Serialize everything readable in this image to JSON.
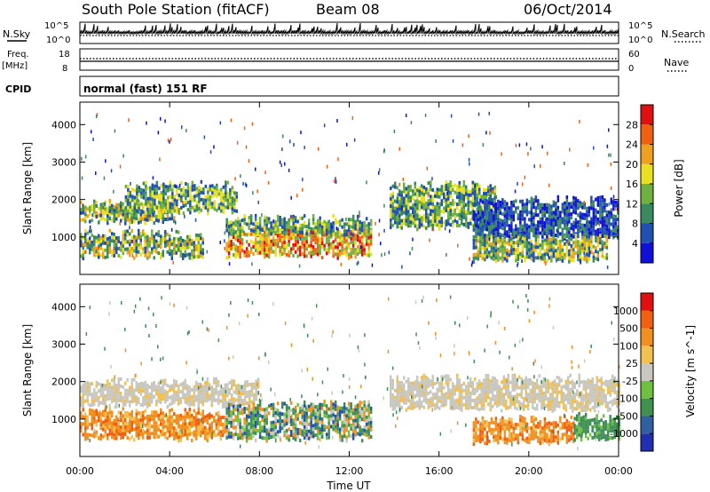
{
  "header": {
    "station": "South Pole Station (fitACF)",
    "beam": "Beam 08",
    "date": "06/Oct/2014"
  },
  "panels": {
    "nsky_label": "N.Sky",
    "nsearch_label": "N.Search",
    "freq_label_1": "Freq.",
    "freq_label_2": "[MHz]",
    "nave_label": "Nave",
    "cpid_label": "CPID",
    "cpid_value": "normal (fast) 151 RF",
    "noise_ticks_left": [
      "10^5",
      "10^0"
    ],
    "noise_ticks_right": [
      "10^5",
      "10^0"
    ],
    "freq_ticks": [
      "18",
      "8"
    ],
    "nave_ticks": [
      "60",
      "0"
    ]
  },
  "colorbars": {
    "power": {
      "label": "Power [dB]",
      "ticks": [
        "28",
        "24",
        "20",
        "16",
        "12",
        "8",
        "4"
      ],
      "colors": [
        "#1010d8",
        "#2050b0",
        "#3a8a60",
        "#70b040",
        "#e8e020",
        "#f0a020",
        "#f06010",
        "#e01010"
      ]
    },
    "velocity": {
      "label": "Velocity [m s^-1]",
      "ticks": [
        "1000",
        "500",
        "100",
        "25",
        "-25",
        "-100",
        "-500",
        "-1000"
      ],
      "colors": [
        "#2030b0",
        "#3060a0",
        "#409050",
        "#70c040",
        "#c8c8c0",
        "#f0c050",
        "#f09020",
        "#f06010",
        "#e01010"
      ]
    }
  },
  "chart_data": [
    {
      "type": "heatmap",
      "name": "power",
      "ylabel": "Slant Range [km]",
      "yticks": [
        "1000",
        "2000",
        "3000",
        "4000"
      ],
      "ylim": [
        0,
        4600
      ],
      "xlim_hours": [
        0,
        24
      ],
      "bands": [
        {
          "t0": 0.0,
          "t1": 4.2,
          "r0": 1450,
          "r1": 1900,
          "level": "high"
        },
        {
          "t0": 0.0,
          "t1": 5.5,
          "r0": 500,
          "r1": 1100,
          "level": "high"
        },
        {
          "t0": 2.0,
          "t1": 7.0,
          "r0": 1700,
          "r1": 2400,
          "level": "mid"
        },
        {
          "t0": 6.5,
          "t1": 13.0,
          "r0": 500,
          "r1": 1200,
          "level": "max"
        },
        {
          "t0": 6.5,
          "t1": 13.0,
          "r0": 1100,
          "r1": 1500,
          "level": "mid"
        },
        {
          "t0": 13.8,
          "t1": 18.5,
          "r0": 1300,
          "r1": 2400,
          "level": "mid"
        },
        {
          "t0": 17.5,
          "t1": 24.0,
          "r0": 1000,
          "r1": 2000,
          "level": "low"
        },
        {
          "t0": 17.5,
          "t1": 23.5,
          "r0": 400,
          "r1": 1000,
          "level": "high"
        }
      ]
    },
    {
      "type": "heatmap",
      "name": "velocity",
      "ylabel": "Slant Range [km]",
      "yticks": [
        "1000",
        "2000",
        "3000",
        "4000"
      ],
      "ylim": [
        0,
        4600
      ],
      "xlim_hours": [
        0,
        24
      ],
      "xticks": [
        "00:00",
        "04:00",
        "08:00",
        "12:00",
        "16:00",
        "20:00",
        "00:00"
      ],
      "xlabel": "Time UT",
      "bands": [
        {
          "t0": 0.0,
          "t1": 8.0,
          "r0": 1400,
          "r1": 2000,
          "level": "grey"
        },
        {
          "t0": 0.0,
          "t1": 6.5,
          "r0": 500,
          "r1": 1200,
          "level": "orange"
        },
        {
          "t0": 6.5,
          "t1": 13.0,
          "r0": 500,
          "r1": 1400,
          "level": "mixed"
        },
        {
          "t0": 13.8,
          "t1": 24.0,
          "r0": 1300,
          "r1": 2100,
          "level": "grey"
        },
        {
          "t0": 17.5,
          "t1": 22.0,
          "r0": 400,
          "r1": 1000,
          "level": "orange"
        },
        {
          "t0": 22.0,
          "t1": 24.0,
          "r0": 500,
          "r1": 1100,
          "level": "green"
        }
      ]
    }
  ]
}
